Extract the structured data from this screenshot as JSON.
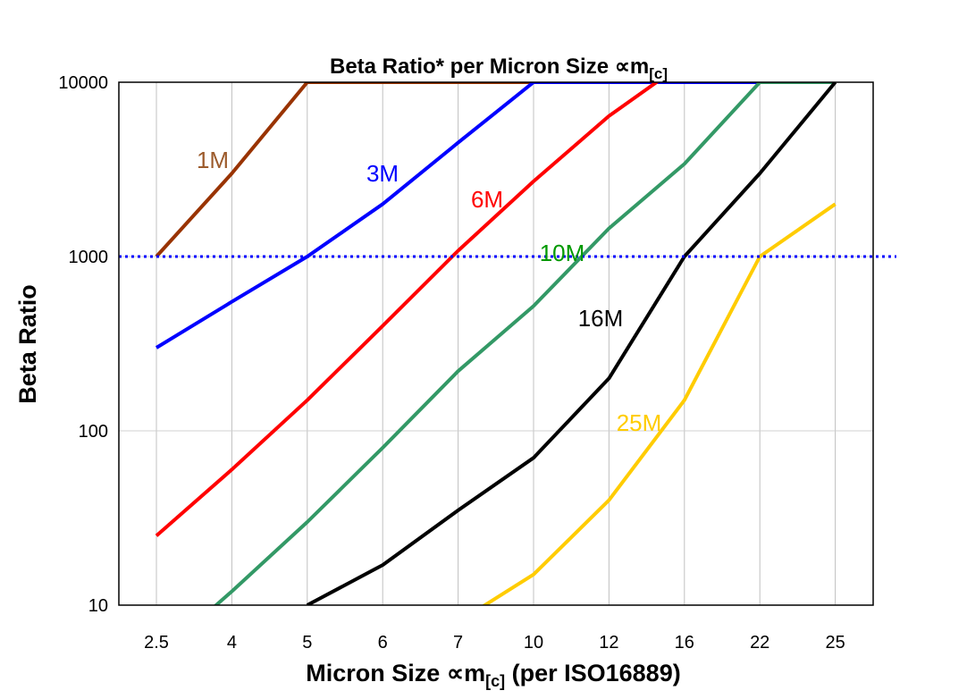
{
  "chart_data": {
    "type": "line",
    "title": "Beta Ratio* per Micron Size ∝m",
    "title_subscript": "[c]",
    "xlabel": "Micron Size ∝m",
    "xlabel_subscript": "[c]",
    "xlabel_suffix": " (per ISO16889)",
    "ylabel": "Beta Ratio",
    "categories": [
      "2.5",
      "4",
      "5",
      "6",
      "7",
      "10",
      "12",
      "16",
      "22",
      "25"
    ],
    "y_scale": "log",
    "ylim": [
      10,
      10000
    ],
    "y_ticks": [
      "10",
      "100",
      "1000",
      "10000"
    ],
    "grid": true,
    "reference_line": {
      "value": 1000,
      "style": "dotted",
      "color": "#0000FF"
    },
    "series": [
      {
        "name": "1M",
        "color": "#993300",
        "label_color": "#9C5B2C",
        "values": [
          1000,
          3000,
          10000,
          10000,
          10000,
          10000,
          null,
          null,
          null,
          null
        ]
      },
      {
        "name": "3M",
        "color": "#0000FF",
        "label_color": "#0000FF",
        "values": [
          300,
          550,
          1000,
          2000,
          4500,
          10000,
          10000,
          10000,
          10000,
          null
        ]
      },
      {
        "name": "6M",
        "color": "#FF0000",
        "label_color": "#FF0000",
        "values": [
          25,
          60,
          150,
          400,
          1080,
          2700,
          6400,
          13000,
          null,
          null
        ]
      },
      {
        "name": "10M",
        "color": "#339966",
        "label_color": "#009900",
        "values": [
          5,
          12,
          30,
          80,
          220,
          520,
          1450,
          3400,
          10000,
          10000
        ]
      },
      {
        "name": "16M",
        "color": "#000000",
        "label_color": "#000000",
        "values": [
          null,
          null,
          10,
          17,
          35,
          70,
          200,
          1000,
          3000,
          10000
        ]
      },
      {
        "name": "25M",
        "color": "#FFCC00",
        "label_color": "#FFCC00",
        "values": [
          null,
          null,
          null,
          null,
          8,
          15,
          40,
          150,
          1000,
          2000
        ]
      }
    ]
  }
}
